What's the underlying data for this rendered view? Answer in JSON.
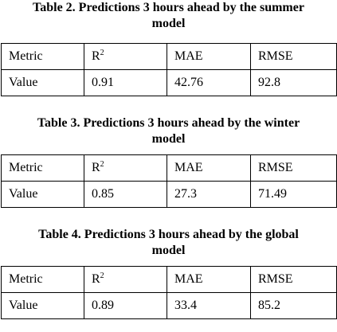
{
  "tables": [
    {
      "caption_line1": "Table 2. Predictions 3 hours ahead by the summer",
      "caption_line2": "model",
      "header": {
        "metric": "Metric",
        "r2_base": "R",
        "r2_sup": "2",
        "mae": "MAE",
        "rmse": "RMSE"
      },
      "row": {
        "label": "Value",
        "r2": "0.91",
        "mae": "42.76",
        "rmse": "92.8"
      }
    },
    {
      "caption_line1": "Table 3. Predictions 3 hours ahead by the winter",
      "caption_line2": "model",
      "header": {
        "metric": "Metric",
        "r2_base": "R",
        "r2_sup": "2",
        "mae": "MAE",
        "rmse": "RMSE"
      },
      "row": {
        "label": "Value",
        "r2": "0.85",
        "mae": "27.3",
        "rmse": "71.49"
      }
    },
    {
      "caption_line1": "Table 4. Predictions 3 hours ahead by the global",
      "caption_line2": "model",
      "header": {
        "metric": "Metric",
        "r2_base": "R",
        "r2_sup": "2",
        "mae": "MAE",
        "rmse": "RMSE"
      },
      "row": {
        "label": "Value",
        "r2": "0.89",
        "mae": "33.4",
        "rmse": "85.2"
      }
    }
  ]
}
